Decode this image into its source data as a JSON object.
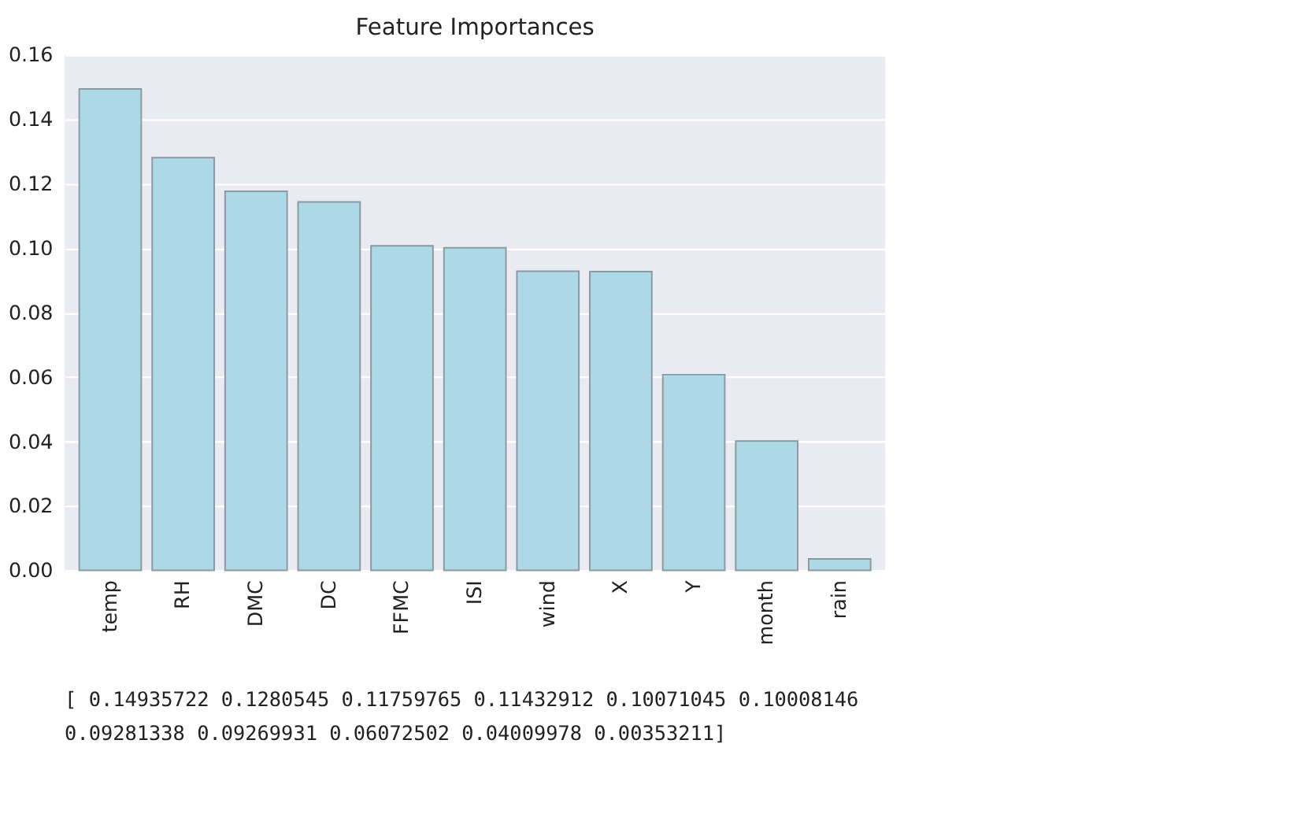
{
  "chart_data": {
    "type": "bar",
    "title": "Feature Importances",
    "categories": [
      "temp",
      "RH",
      "DMC",
      "DC",
      "FFMC",
      "ISI",
      "wind",
      "X",
      "Y",
      "month",
      "rain"
    ],
    "values": [
      0.14935722,
      0.1280545,
      0.11759765,
      0.11432912,
      0.10071045,
      0.10008146,
      0.09281338,
      0.09269931,
      0.06072502,
      0.04009978,
      0.00353211
    ],
    "color": "#add8e6",
    "ylim": [
      0,
      0.16
    ],
    "yticks": [
      {
        "value": 0,
        "label": "0.00"
      },
      {
        "value": 0.02,
        "label": "0.02"
      },
      {
        "value": 0.04,
        "label": "0.04"
      },
      {
        "value": 0.06,
        "label": "0.06"
      },
      {
        "value": 0.08,
        "label": "0.08"
      },
      {
        "value": 0.1,
        "label": "0.10"
      },
      {
        "value": 0.12,
        "label": "0.12"
      },
      {
        "value": 0.14,
        "label": "0.14"
      },
      {
        "value": 0.16,
        "label": "0.16"
      }
    ],
    "grid": "y",
    "annotations": [
      "[ 0.14935722  0.1280545   0.11759765  0.11432912  0.10071045  0.10008146",
      "  0.09281338  0.09269931  0.06072502  0.04009978  0.00353211]"
    ]
  }
}
